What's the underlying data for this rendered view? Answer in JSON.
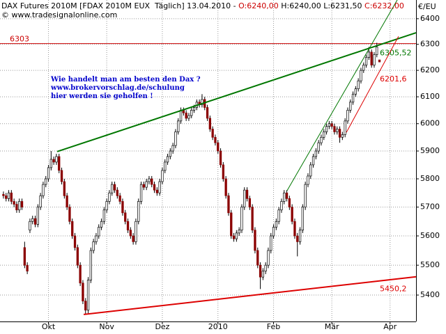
{
  "chart_data": {
    "type": "candlestick",
    "title": "DAX Futures 2010M [FDAX 2010M EUX  Täglich] 13.04.2010 - ",
    "header_open": "O:6240,00",
    "header_high_low": " H:6240,00 L:6231,50 ",
    "header_close": "C:6232,00",
    "subtitle": "© www.tradesignalonline.com",
    "ylabel": "€/EU",
    "annotation": [
      "Wie handelt man am besten den Dax ?",
      "www.brokervorschlag.de/schulung",
      "hier werden sie geholfen !"
    ],
    "log_scale": true,
    "grid": true,
    "up_color": "#ffffff",
    "down_color": "#8b0000",
    "ylim": [
      5313,
      6474
    ],
    "yticks": [
      5400,
      5500,
      5600,
      5700,
      5800,
      5900,
      6000,
      6100,
      6200,
      6300,
      6400
    ],
    "xlim": [
      -1.3,
      155.8
    ],
    "xticks": [
      {
        "value": 17,
        "label": "Okt"
      },
      {
        "value": 39,
        "label": "Nov"
      },
      {
        "value": 60,
        "label": "Dez"
      },
      {
        "value": 81,
        "label": "2010"
      },
      {
        "value": 102,
        "label": "Feb"
      },
      {
        "value": 124,
        "label": "Mär"
      },
      {
        "value": 146,
        "label": "Apr"
      }
    ],
    "hline": {
      "value": 6303,
      "color": "#cc0000"
    },
    "lines": [
      {
        "color": "#007700",
        "width": 2,
        "x": [
          20.3,
          155.8
        ],
        "values": [
          5898,
          6345
        ],
        "label": "6305,52"
      },
      {
        "color": "#007700",
        "width": 1,
        "x": [
          107.1,
          148.7
        ],
        "values": [
          5758,
          6474
        ]
      },
      {
        "color": "#dd0000",
        "width": 2,
        "x": [
          30.3,
          155.8
        ],
        "values": [
          5336,
          5461
        ],
        "label": "5450,2"
      },
      {
        "color": "#dd0000",
        "width": 1,
        "x": [
          129.5,
          149.2
        ],
        "values": [
          5968,
          6331
        ],
        "label": "6201,6"
      }
    ],
    "candles": [
      [
        5745,
        5755,
        5730,
        5740
      ],
      [
        5740,
        5750,
        5720,
        5730
      ],
      [
        5730,
        5760,
        5720,
        5750
      ],
      [
        5750,
        5760,
        5710,
        5720
      ],
      [
        5720,
        5730,
        5700,
        5710
      ],
      [
        5710,
        5720,
        5680,
        5690
      ],
      [
        5690,
        5730,
        5680,
        5720
      ],
      [
        5720,
        5730,
        5690,
        5700
      ],
      [
        5560,
        5580,
        5490,
        5500
      ],
      [
        5500,
        5510,
        5470,
        5480
      ],
      [
        5620,
        5660,
        5610,
        5650
      ],
      [
        5650,
        5670,
        5640,
        5660
      ],
      [
        5660,
        5670,
        5630,
        5640
      ],
      [
        5640,
        5710,
        5630,
        5700
      ],
      [
        5700,
        5750,
        5690,
        5740
      ],
      [
        5740,
        5790,
        5730,
        5780
      ],
      [
        5780,
        5810,
        5770,
        5800
      ],
      [
        5800,
        5850,
        5790,
        5840
      ],
      [
        5840,
        5900,
        5830,
        5870
      ],
      [
        5870,
        5880,
        5850,
        5860
      ],
      [
        5860,
        5890,
        5850,
        5880
      ],
      [
        5880,
        5890,
        5820,
        5830
      ],
      [
        5830,
        5840,
        5780,
        5790
      ],
      [
        5790,
        5800,
        5730,
        5740
      ],
      [
        5740,
        5750,
        5690,
        5700
      ],
      [
        5700,
        5710,
        5640,
        5650
      ],
      [
        5650,
        5660,
        5590,
        5600
      ],
      [
        5600,
        5610,
        5550,
        5560
      ],
      [
        5560,
        5570,
        5490,
        5500
      ],
      [
        5500,
        5510,
        5430,
        5440
      ],
      [
        5440,
        5450,
        5370,
        5380
      ],
      [
        5380,
        5390,
        5336,
        5350
      ],
      [
        5350,
        5460,
        5340,
        5450
      ],
      [
        5450,
        5560,
        5440,
        5550
      ],
      [
        5550,
        5590,
        5540,
        5580
      ],
      [
        5580,
        5610,
        5570,
        5600
      ],
      [
        5600,
        5640,
        5590,
        5630
      ],
      [
        5630,
        5660,
        5620,
        5650
      ],
      [
        5650,
        5700,
        5640,
        5690
      ],
      [
        5690,
        5730,
        5680,
        5720
      ],
      [
        5720,
        5760,
        5710,
        5750
      ],
      [
        5750,
        5790,
        5740,
        5780
      ],
      [
        5780,
        5790,
        5750,
        5760
      ],
      [
        5760,
        5770,
        5730,
        5740
      ],
      [
        5740,
        5750,
        5710,
        5720
      ],
      [
        5720,
        5730,
        5670,
        5680
      ],
      [
        5680,
        5690,
        5640,
        5650
      ],
      [
        5650,
        5660,
        5610,
        5620
      ],
      [
        5620,
        5630,
        5590,
        5600
      ],
      [
        5600,
        5610,
        5570,
        5580
      ],
      [
        5580,
        5660,
        5570,
        5650
      ],
      [
        5650,
        5730,
        5640,
        5720
      ],
      [
        5720,
        5790,
        5710,
        5780
      ],
      [
        5780,
        5790,
        5760,
        5770
      ],
      [
        5770,
        5800,
        5760,
        5790
      ],
      [
        5790,
        5810,
        5780,
        5800
      ],
      [
        5800,
        5810,
        5770,
        5780
      ],
      [
        5780,
        5790,
        5750,
        5760
      ],
      [
        5760,
        5770,
        5740,
        5750
      ],
      [
        5750,
        5800,
        5740,
        5790
      ],
      [
        5790,
        5840,
        5780,
        5830
      ],
      [
        5830,
        5870,
        5820,
        5860
      ],
      [
        5860,
        5890,
        5850,
        5880
      ],
      [
        5880,
        5910,
        5870,
        5900
      ],
      [
        5900,
        5930,
        5890,
        5920
      ],
      [
        5920,
        5980,
        5910,
        5970
      ],
      [
        5970,
        6020,
        5960,
        6010
      ],
      [
        6010,
        6060,
        6000,
        6050
      ],
      [
        6050,
        6060,
        6030,
        6040
      ],
      [
        6040,
        6050,
        6010,
        6020
      ],
      [
        6020,
        6040,
        6010,
        6030
      ],
      [
        6030,
        6060,
        6020,
        6050
      ],
      [
        6050,
        6070,
        6040,
        6060
      ],
      [
        6060,
        6090,
        6050,
        6080
      ],
      [
        6080,
        6090,
        6060,
        6070
      ],
      [
        6070,
        6110,
        6060,
        6090
      ],
      [
        6090,
        6100,
        6050,
        6060
      ],
      [
        6060,
        6070,
        6010,
        6020
      ],
      [
        6020,
        6030,
        5970,
        5980
      ],
      [
        5980,
        5990,
        5940,
        5950
      ],
      [
        5950,
        5960,
        5920,
        5930
      ],
      [
        5930,
        5940,
        5890,
        5900
      ],
      [
        5900,
        5910,
        5840,
        5850
      ],
      [
        5850,
        5860,
        5790,
        5800
      ],
      [
        5800,
        5810,
        5730,
        5740
      ],
      [
        5740,
        5750,
        5670,
        5680
      ],
      [
        5680,
        5690,
        5590,
        5600
      ],
      [
        5600,
        5610,
        5580,
        5590
      ],
      [
        5590,
        5620,
        5580,
        5610
      ],
      [
        5610,
        5630,
        5600,
        5620
      ],
      [
        5620,
        5710,
        5610,
        5700
      ],
      [
        5700,
        5770,
        5690,
        5760
      ],
      [
        5760,
        5770,
        5720,
        5730
      ],
      [
        5730,
        5740,
        5690,
        5700
      ],
      [
        5700,
        5710,
        5610,
        5620
      ],
      [
        5620,
        5630,
        5540,
        5550
      ],
      [
        5550,
        5560,
        5490,
        5500
      ],
      [
        5500,
        5510,
        5420,
        5460
      ],
      [
        5460,
        5490,
        5450,
        5480
      ],
      [
        5480,
        5510,
        5470,
        5500
      ],
      [
        5500,
        5560,
        5490,
        5550
      ],
      [
        5550,
        5610,
        5540,
        5600
      ],
      [
        5600,
        5640,
        5590,
        5630
      ],
      [
        5630,
        5660,
        5620,
        5650
      ],
      [
        5650,
        5700,
        5640,
        5690
      ],
      [
        5690,
        5730,
        5680,
        5720
      ],
      [
        5720,
        5760,
        5710,
        5750
      ],
      [
        5750,
        5760,
        5720,
        5730
      ],
      [
        5730,
        5740,
        5690,
        5700
      ],
      [
        5700,
        5710,
        5640,
        5650
      ],
      [
        5650,
        5660,
        5590,
        5600
      ],
      [
        5600,
        5610,
        5530,
        5580
      ],
      [
        5580,
        5630,
        5570,
        5620
      ],
      [
        5620,
        5710,
        5610,
        5700
      ],
      [
        5700,
        5790,
        5690,
        5780
      ],
      [
        5780,
        5820,
        5770,
        5810
      ],
      [
        5810,
        5860,
        5800,
        5850
      ],
      [
        5850,
        5890,
        5840,
        5880
      ],
      [
        5880,
        5910,
        5870,
        5900
      ],
      [
        5900,
        5940,
        5890,
        5930
      ],
      [
        5930,
        5960,
        5920,
        5950
      ],
      [
        5950,
        5980,
        5940,
        5970
      ],
      [
        5970,
        6000,
        5960,
        5990
      ],
      [
        5990,
        6010,
        5980,
        6000
      ],
      [
        6000,
        6010,
        5980,
        5990
      ],
      [
        5990,
        6000,
        5960,
        5970
      ],
      [
        5970,
        5990,
        5960,
        5980
      ],
      [
        5980,
        5990,
        5930,
        5950
      ],
      [
        5950,
        5970,
        5940,
        5960
      ],
      [
        5960,
        6020,
        5950,
        6010
      ],
      [
        6010,
        6060,
        6000,
        6050
      ],
      [
        6050,
        6090,
        6040,
        6080
      ],
      [
        6080,
        6120,
        6070,
        6110
      ],
      [
        6110,
        6140,
        6100,
        6130
      ],
      [
        6130,
        6170,
        6120,
        6160
      ],
      [
        6160,
        6210,
        6150,
        6200
      ],
      [
        6200,
        6230,
        6190,
        6220
      ],
      [
        6220,
        6260,
        6210,
        6250
      ],
      [
        6250,
        6290,
        6240,
        6270
      ],
      [
        6270,
        6280,
        6210,
        6220
      ],
      [
        6220,
        6270,
        6210,
        6260
      ],
      [
        6260,
        6306,
        6250,
        6290
      ],
      [
        6240,
        6240,
        6231.5,
        6232
      ]
    ]
  }
}
